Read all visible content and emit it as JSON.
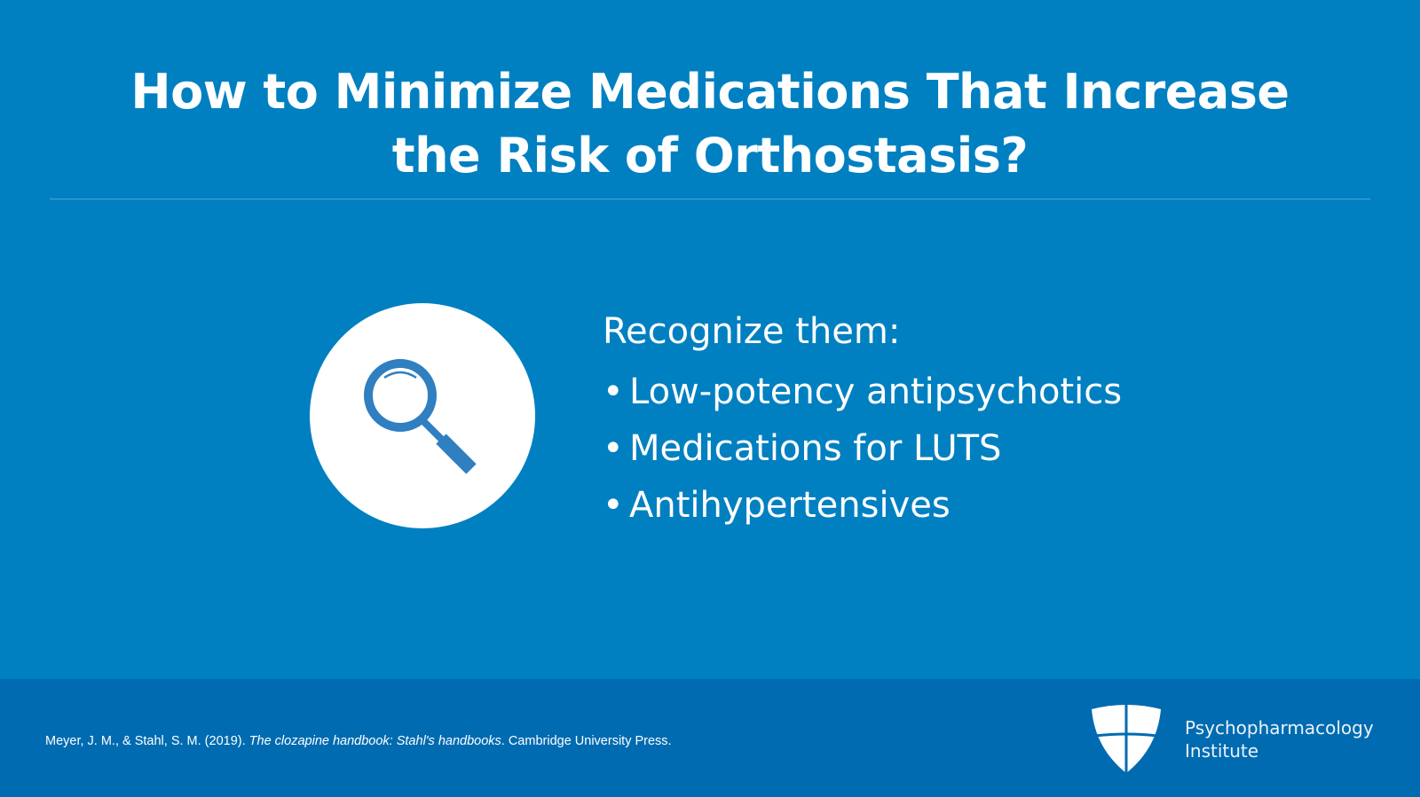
{
  "slide": {
    "title_line1": "How to Minimize Medications That Increase",
    "title_line2": "the Risk of Orthostasis?",
    "icon": "magnifying-glass-icon",
    "heading": "Recognize them:",
    "bullets": [
      "Low-potency antipsychotics",
      "Medications for LUTS",
      "Antihypertensives"
    ],
    "bullet_glyph": "•"
  },
  "footer": {
    "citation_authors": "Meyer, J. M., & Stahl, S. M. (2019). ",
    "citation_title": "The clozapine handbook: Stahl's handbooks",
    "citation_publisher": ". Cambridge University Press.",
    "logo_line1": "Psychopharmacology",
    "logo_line2": "Institute"
  },
  "colors": {
    "background": "#0180c1",
    "footer": "#006bb0",
    "icon": "#2f7fc1"
  }
}
